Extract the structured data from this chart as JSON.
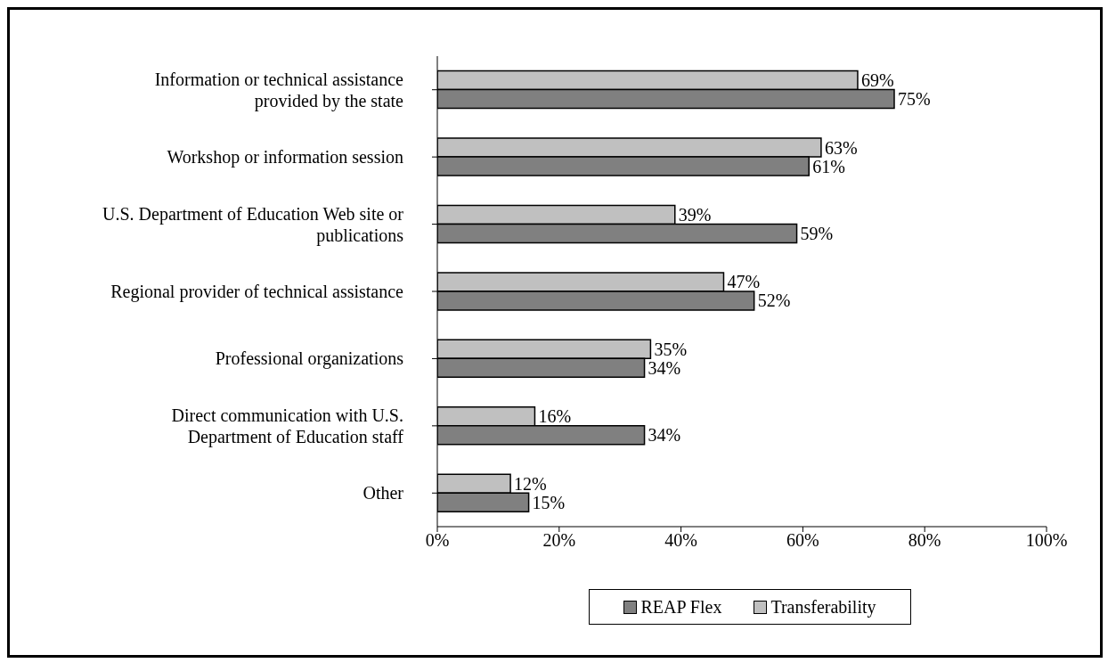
{
  "chart_data": {
    "type": "bar",
    "orientation": "horizontal",
    "categories": [
      "Information or technical assistance provided by the state",
      "Workshop or information session",
      "U.S. Department of Education Web site or publications",
      "Regional provider of technical assistance",
      "Professional organizations",
      "Direct communication with U.S. Department of Education staff",
      "Other"
    ],
    "series": [
      {
        "name": "Transferability",
        "color": "#c0c0c0",
        "values": [
          69,
          63,
          39,
          47,
          35,
          16,
          12
        ],
        "value_labels": [
          "69%",
          "63%",
          "39%",
          "47%",
          "35%",
          "16%",
          "12%"
        ]
      },
      {
        "name": "REAP Flex",
        "color": "#808080",
        "values": [
          75,
          61,
          59,
          52,
          34,
          34,
          15
        ],
        "value_labels": [
          "75%",
          "61%",
          "59%",
          "52%",
          "34%",
          "34%",
          "15%"
        ]
      }
    ],
    "xlim": [
      0,
      100
    ],
    "xticks": [
      {
        "value": 0,
        "label": "0%"
      },
      {
        "value": 20,
        "label": "20%"
      },
      {
        "value": 40,
        "label": "40%"
      },
      {
        "value": 60,
        "label": "60%"
      },
      {
        "value": 80,
        "label": "80%"
      },
      {
        "value": 100,
        "label": "100%"
      }
    ],
    "legend": "bottom"
  }
}
